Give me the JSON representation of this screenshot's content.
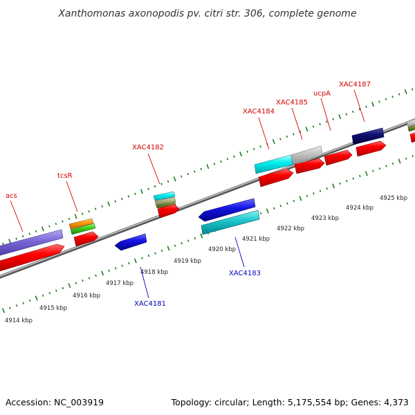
{
  "title": "Xanthomonas axonopodis pv. citri str. 306, complete genome",
  "footer": {
    "accession": "Accession: NC_003919",
    "summary": "Topology: circular; Length: 5,175,554 bp; Genes: 4,373"
  },
  "colors": {
    "backbone": "#8a8a8a",
    "tick": "#1a7a1a",
    "forward_label": "#d40000",
    "reverse_label": "#0000bb",
    "forward_gene": "#ff0000",
    "reverse_gene": "#1010e0"
  },
  "ticks": [
    {
      "kbp": 4914,
      "label": "4914 kbp"
    },
    {
      "kbp": 4915,
      "label": "4915 kbp"
    },
    {
      "kbp": 4916,
      "label": "4916 kbp"
    },
    {
      "kbp": 4917,
      "label": "4917 kbp"
    },
    {
      "kbp": 4918,
      "label": "4918 kbp"
    },
    {
      "kbp": 4919,
      "label": "4919 kbp"
    },
    {
      "kbp": 4920,
      "label": "4920 kbp"
    },
    {
      "kbp": 4921,
      "label": "4921 kbp"
    },
    {
      "kbp": 4922,
      "label": "4922 kbp"
    },
    {
      "kbp": 4923,
      "label": "4923 kbp"
    },
    {
      "kbp": 4924,
      "label": "4924 kbp"
    },
    {
      "kbp": 4925,
      "label": "4925 kbp"
    }
  ],
  "labels": [
    {
      "text": "acs",
      "strand": "forward"
    },
    {
      "text": "tcsR",
      "strand": "forward"
    },
    {
      "text": "XAC4182",
      "strand": "forward"
    },
    {
      "text": "XAC4184",
      "strand": "forward"
    },
    {
      "text": "XAC4185",
      "strand": "forward"
    },
    {
      "text": "ucpA",
      "strand": "forward"
    },
    {
      "text": "XAC4187",
      "strand": "forward"
    },
    {
      "text": "XAC4183",
      "strand": "reverse"
    },
    {
      "text": "XAC4181",
      "strand": "reverse"
    }
  ]
}
